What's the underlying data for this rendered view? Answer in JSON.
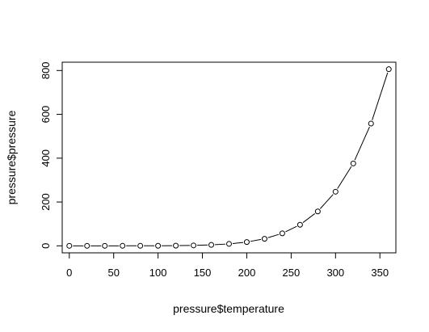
{
  "chart_data": {
    "type": "line",
    "markers": "open-circle",
    "xlabel": "pressure$temperature",
    "ylabel": "pressure$pressure",
    "xlim": [
      -8.0,
      368.0
    ],
    "ylim": [
      -32.0,
      838.0
    ],
    "x_ticks": [
      0,
      50,
      100,
      150,
      200,
      250,
      300,
      350
    ],
    "y_ticks": [
      0,
      200,
      400,
      600,
      800
    ],
    "x": [
      0,
      20,
      40,
      60,
      80,
      100,
      120,
      140,
      160,
      180,
      200,
      220,
      240,
      260,
      280,
      300,
      320,
      340,
      360
    ],
    "values": [
      0.0002,
      0.0012,
      0.006,
      0.03,
      0.09,
      0.27,
      0.75,
      1.85,
      4.2,
      8.8,
      17.3,
      32.1,
      57,
      96,
      157,
      247,
      376,
      558,
      806
    ],
    "grid": false,
    "legend": "none",
    "colors": {
      "line": "#000000",
      "marker": "#000000",
      "frame": "#000000"
    }
  }
}
